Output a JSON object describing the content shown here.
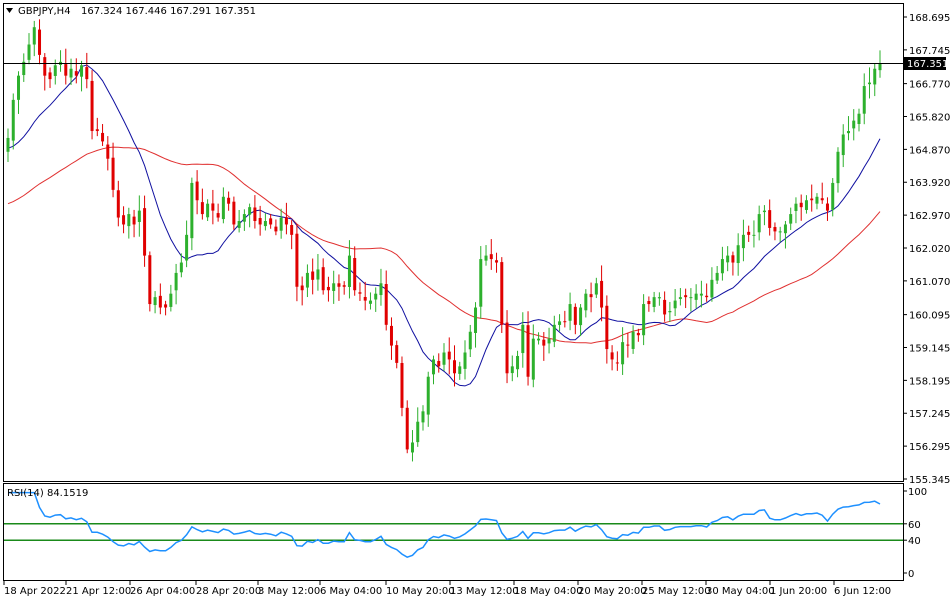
{
  "header": {
    "symbol": "GBPJPY,H4",
    "ohlc": "167.324 167.446 167.291 167.351",
    "dropdown_icon": "triangle-down-icon"
  },
  "rsi_header": {
    "label": "RSI(14) 84.1519"
  },
  "current_price_label": "167.351",
  "colors": {
    "bull": "#2db02d",
    "bear": "#e00000",
    "ma_fast": "#1010a0",
    "ma_slow": "#e03030",
    "rsi_line": "#1e90ff",
    "rsi_levels": "#1a8a1a",
    "price_line": "#000000"
  },
  "chart_data": [
    {
      "type": "candlestick",
      "title": "GBPJPY,H4",
      "ylim": [
        155.345,
        168.9
      ],
      "y_ticks": [
        "168.695",
        "167.745",
        "166.770",
        "165.820",
        "164.870",
        "163.920",
        "162.970",
        "162.020",
        "161.070",
        "160.095",
        "159.145",
        "158.195",
        "157.245",
        "156.295",
        "155.345"
      ],
      "x_ticks": [
        "18 Apr 2022",
        "21 Apr 12:00",
        "26 Apr 04:00",
        "28 Apr 20:00",
        "3 May 12:00",
        "6 May 04:00",
        "10 May 20:00",
        "13 May 12:00",
        "18 May 04:00",
        "20 May 20:00",
        "25 May 12:00",
        "30 May 04:00",
        "1 Jun 20:00",
        "6 Jun 12:00"
      ],
      "current_price": 167.351,
      "close_series": [
        165.2,
        166.3,
        167.0,
        167.4,
        167.9,
        168.4,
        167.6,
        167.0,
        166.9,
        167.3,
        167.4,
        167.0,
        167.2,
        167.0,
        167.3,
        166.9,
        165.4,
        165.4,
        165.1,
        164.6,
        163.7,
        162.9,
        162.7,
        163.0,
        162.7,
        163.1,
        161.8,
        160.4,
        160.6,
        160.3,
        160.3,
        160.7,
        161.3,
        161.6,
        162.4,
        163.9,
        163.4,
        163.0,
        163.3,
        163.1,
        162.9,
        163.5,
        163.3,
        162.7,
        162.8,
        163.0,
        163.2,
        162.8,
        162.7,
        162.8,
        162.7,
        162.5,
        162.9,
        162.7,
        162.4,
        160.9,
        160.8,
        161.3,
        161.1,
        161.4,
        160.8,
        160.8,
        161.0,
        160.9,
        160.9,
        161.8,
        160.8,
        160.7,
        160.5,
        160.5,
        160.7,
        161.0,
        159.8,
        159.2,
        158.7,
        157.4,
        156.2,
        156.4,
        157.0,
        157.3,
        158.3,
        158.8,
        158.6,
        159.0,
        158.8,
        158.4,
        158.6,
        159.0,
        159.6,
        160.3,
        161.7,
        161.8,
        161.7,
        161.6,
        159.8,
        158.4,
        158.6,
        158.9,
        159.8,
        158.3,
        159.4,
        159.4,
        159.2,
        159.4,
        159.8,
        159.9,
        159.9,
        160.4,
        159.8,
        160.3,
        160.7,
        160.6,
        161.0,
        160.3,
        159.1,
        158.8,
        158.7,
        159.3,
        159.2,
        159.6,
        159.5,
        160.4,
        160.4,
        160.6,
        160.6,
        160.1,
        160.2,
        160.5,
        160.6,
        160.6,
        160.6,
        160.7,
        160.7,
        160.6,
        161.1,
        161.3,
        161.7,
        161.8,
        161.6,
        162.1,
        162.4,
        162.4,
        162.4,
        163.0,
        163.1,
        162.6,
        162.5,
        162.5,
        162.7,
        163.0,
        163.3,
        163.2,
        163.4,
        163.4,
        163.5,
        163.4,
        163.1,
        163.9,
        164.8,
        165.3,
        165.4,
        165.7,
        165.9,
        166.7,
        166.8,
        167.2,
        167.351
      ],
      "ma_fast": {
        "name": "",
        "start": 164.9,
        "end": 165.0
      },
      "ma_slow": {
        "name": "",
        "start": 163.3,
        "end": 162.8
      }
    },
    {
      "type": "line",
      "title": "RSI(14) 84.1519",
      "ylim": [
        0,
        100
      ],
      "y_ticks": [
        "100",
        "60",
        "40",
        "0"
      ],
      "levels": [
        60,
        40
      ],
      "last_value": 84.1519
    }
  ]
}
